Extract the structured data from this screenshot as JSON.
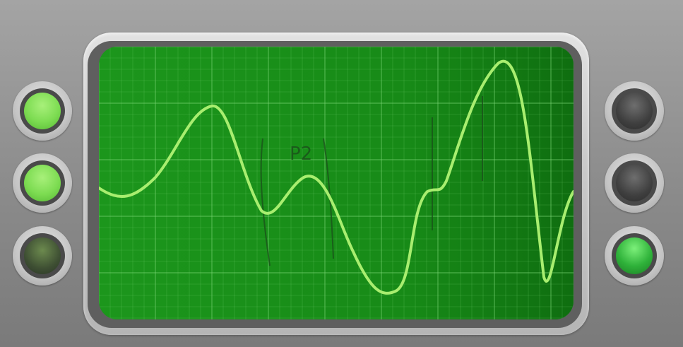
{
  "device": {
    "screen": {
      "background": "#1f9b1f",
      "grid_color": "#7fd97a",
      "trace_color": "#a8ee6f",
      "annotation_text": "P2",
      "annotation_color": "#2a6a2a"
    },
    "left_indicators": [
      {
        "name": "indicator-left-1",
        "state": "on"
      },
      {
        "name": "indicator-left-2",
        "state": "on"
      },
      {
        "name": "indicator-left-3",
        "state": "off"
      }
    ],
    "right_indicators": [
      {
        "name": "indicator-right-1",
        "state": "off"
      },
      {
        "name": "indicator-right-2",
        "state": "off"
      },
      {
        "name": "indicator-right-3",
        "state": "on"
      }
    ]
  }
}
